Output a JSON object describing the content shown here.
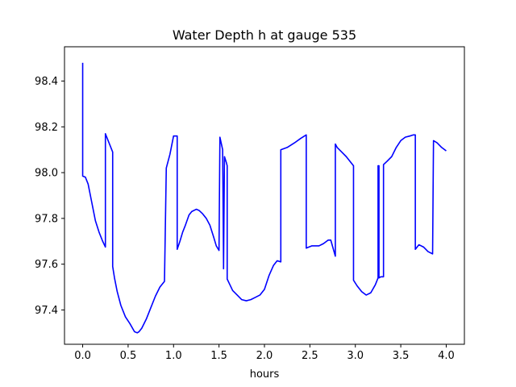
{
  "chart_data": {
    "type": "line",
    "title": "Water Depth h at gauge 535",
    "xlabel": "hours",
    "ylabel": "",
    "xlim": [
      -0.2,
      4.2
    ],
    "ylim": [
      97.25,
      98.55
    ],
    "grid": false,
    "xticks": [
      0.0,
      0.5,
      1.0,
      1.5,
      2.0,
      2.5,
      3.0,
      3.5,
      4.0
    ],
    "xtick_labels": [
      "0.0",
      "0.5",
      "1.0",
      "1.5",
      "2.0",
      "2.5",
      "3.0",
      "3.5",
      "4.0"
    ],
    "yticks": [
      97.4,
      97.6,
      97.8,
      98.0,
      98.2,
      98.4
    ],
    "ytick_labels": [
      "97.4",
      "97.6",
      "97.8",
      "98.0",
      "98.2",
      "98.4"
    ],
    "series": [
      {
        "color": "#0000ff",
        "x": [
          0.0,
          0.0,
          0.03,
          0.06,
          0.1,
          0.14,
          0.18,
          0.22,
          0.25,
          0.25,
          0.3,
          0.33,
          0.33,
          0.35,
          0.38,
          0.42,
          0.47,
          0.52,
          0.57,
          0.6,
          0.62,
          0.65,
          0.7,
          0.75,
          0.8,
          0.85,
          0.9,
          0.92,
          0.92,
          0.96,
          1.0,
          1.04,
          1.04,
          1.07,
          1.1,
          1.13,
          1.17,
          1.2,
          1.25,
          1.28,
          1.32,
          1.36,
          1.4,
          1.44,
          1.47,
          1.5,
          1.51,
          1.51,
          1.54,
          1.55,
          1.55,
          1.56,
          1.56,
          1.58,
          1.59,
          1.59,
          1.62,
          1.65,
          1.7,
          1.75,
          1.8,
          1.85,
          1.9,
          1.95,
          2.0,
          2.05,
          2.1,
          2.14,
          2.18,
          2.18,
          2.25,
          2.33,
          2.4,
          2.46,
          2.46,
          2.52,
          2.6,
          2.65,
          2.7,
          2.73,
          2.78,
          2.78,
          2.8,
          2.85,
          2.9,
          2.95,
          2.98,
          2.98,
          3.02,
          3.07,
          3.12,
          3.17,
          3.22,
          3.25,
          3.25,
          3.26,
          3.26,
          3.28,
          3.3,
          3.31,
          3.31,
          3.35,
          3.4,
          3.45,
          3.5,
          3.55,
          3.6,
          3.64,
          3.66,
          3.66,
          3.7,
          3.75,
          3.8,
          3.85,
          3.86,
          3.86,
          3.9,
          3.95,
          4.0
        ],
        "y": [
          98.48,
          97.985,
          97.98,
          97.95,
          97.87,
          97.79,
          97.74,
          97.7,
          97.675,
          98.17,
          98.12,
          98.09,
          97.59,
          97.54,
          97.48,
          97.42,
          97.37,
          97.34,
          97.305,
          97.3,
          97.305,
          97.32,
          97.36,
          97.41,
          97.46,
          97.5,
          97.525,
          98.02,
          98.02,
          98.08,
          98.16,
          98.16,
          97.665,
          97.7,
          97.74,
          97.77,
          97.815,
          97.83,
          97.84,
          97.835,
          97.82,
          97.8,
          97.77,
          97.72,
          97.68,
          97.66,
          98.155,
          98.155,
          98.1,
          97.6,
          97.58,
          98.07,
          98.07,
          98.045,
          98.03,
          97.535,
          97.51,
          97.485,
          97.465,
          97.445,
          97.44,
          97.445,
          97.455,
          97.465,
          97.49,
          97.55,
          97.595,
          97.615,
          97.61,
          98.1,
          98.11,
          98.13,
          98.15,
          98.165,
          97.67,
          97.68,
          97.68,
          97.69,
          97.705,
          97.705,
          97.635,
          98.125,
          98.11,
          98.09,
          98.07,
          98.045,
          98.03,
          97.53,
          97.505,
          97.48,
          97.465,
          97.475,
          97.51,
          97.54,
          98.03,
          98.03,
          97.54,
          97.545,
          97.545,
          97.545,
          98.035,
          98.05,
          98.07,
          98.11,
          98.14,
          98.155,
          98.16,
          98.165,
          98.165,
          97.665,
          97.685,
          97.675,
          97.655,
          97.645,
          98.14,
          98.14,
          98.13,
          98.11,
          98.095
        ]
      }
    ]
  }
}
